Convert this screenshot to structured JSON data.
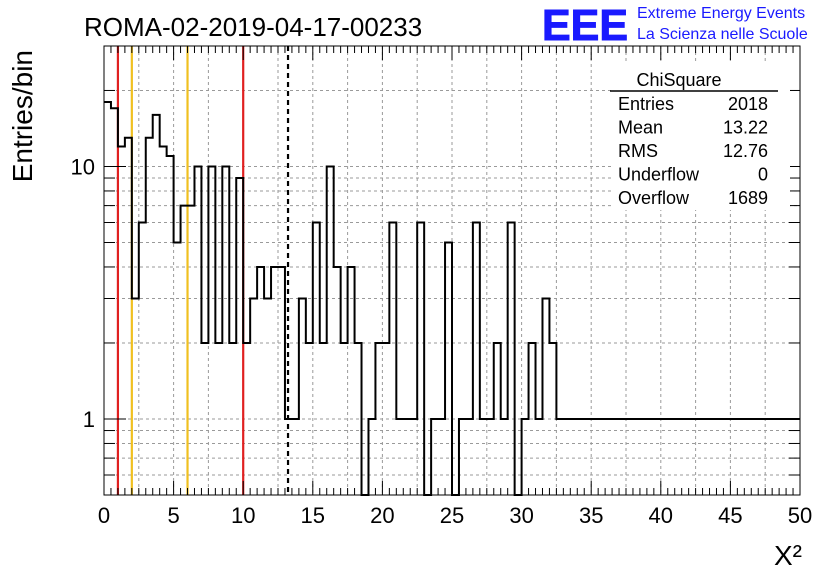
{
  "chart_data": {
    "type": "histogram",
    "title": "ROMA-02-2019-04-17-00233",
    "xlabel": "X²",
    "ylabel": "Entries/bin",
    "yscale": "log",
    "xlim": [
      0,
      50
    ],
    "ylim": [
      0.5,
      30
    ],
    "x_tick_labels": [
      "0",
      "5",
      "10",
      "15",
      "20",
      "25",
      "30",
      "35",
      "40",
      "45",
      "50"
    ],
    "y_tick_labels": [
      {
        "value": 1,
        "label": "1"
      },
      {
        "value": 10,
        "label": "10"
      }
    ],
    "grid": true,
    "bin_width": 0.5,
    "bin_counts": [
      18,
      17,
      12,
      13,
      3,
      6,
      13,
      16,
      12,
      11,
      5,
      7,
      7,
      10,
      2,
      10,
      2,
      10,
      2,
      9,
      2,
      3,
      4,
      3,
      4,
      4,
      1,
      1,
      3,
      2,
      6,
      2,
      10,
      4,
      2,
      4,
      2,
      0.5,
      1,
      2,
      2,
      6,
      1,
      1,
      1,
      6,
      0.5,
      1,
      1,
      5,
      0.5,
      1,
      1,
      6,
      1,
      1,
      2,
      1,
      6,
      0.5,
      1,
      2,
      1,
      3,
      2,
      1,
      1,
      1,
      1,
      1,
      1,
      1,
      1,
      1,
      1,
      1,
      1,
      1,
      1,
      1,
      1,
      1,
      1,
      1,
      1,
      1,
      1,
      1,
      1,
      1,
      1,
      1,
      1,
      1,
      1,
      1,
      1,
      1,
      1,
      1
    ],
    "vertical_lines": [
      {
        "x": 1,
        "color": "#e02020",
        "style": "solid"
      },
      {
        "x": 2,
        "color": "#f0c020",
        "style": "solid"
      },
      {
        "x": 6,
        "color": "#f0c020",
        "style": "solid"
      },
      {
        "x": 10,
        "color": "#e02020",
        "style": "solid"
      },
      {
        "x": 13.22,
        "color": "#000000",
        "style": "dashed"
      }
    ],
    "stats_box": {
      "title": "ChiSquare",
      "rows": [
        {
          "label": "Entries",
          "value": "2018"
        },
        {
          "label": "Mean",
          "value": "13.22"
        },
        {
          "label": "RMS",
          "value": "12.76"
        },
        {
          "label": "Underflow",
          "value": "0"
        },
        {
          "label": "Overflow",
          "value": "1689"
        }
      ]
    }
  },
  "logo": {
    "mark": "EEE",
    "line1": "Extreme Energy Events",
    "line2": "La Scienza nelle Scuole",
    "color": "#1a1aff"
  }
}
